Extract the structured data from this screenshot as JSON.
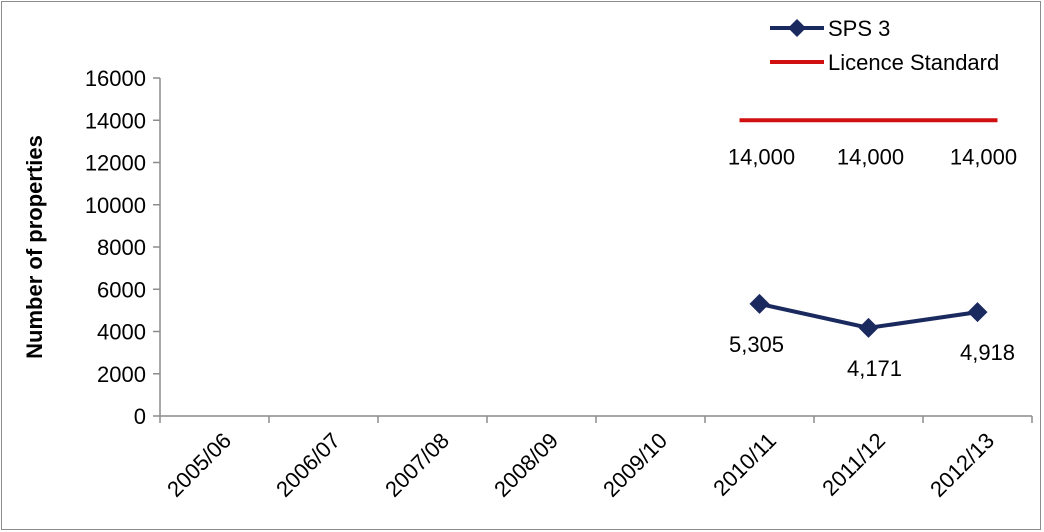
{
  "chart_data": {
    "type": "line",
    "title": "",
    "xlabel": "",
    "ylabel": "Number of properties",
    "categories": [
      "2005/06",
      "2006/07",
      "2007/08",
      "2008/09",
      "2009/10",
      "2010/11",
      "2011/12",
      "2012/13"
    ],
    "ylim": [
      0,
      16000
    ],
    "yticks": [
      0,
      2000,
      4000,
      6000,
      8000,
      10000,
      12000,
      14000,
      16000
    ],
    "grid": false,
    "legend_position": "top-right",
    "series": [
      {
        "name": "SPS 3",
        "color": "#1a2a5e",
        "marker": "diamond",
        "values": [
          null,
          null,
          null,
          null,
          null,
          5305,
          4171,
          4918
        ],
        "labels": [
          "",
          "",
          "",
          "",
          "",
          "5,305",
          "4,171",
          "4,918"
        ]
      },
      {
        "name": "Licence Standard",
        "color": "#d01010",
        "marker": "none",
        "values": [
          null,
          null,
          null,
          null,
          null,
          14000,
          14000,
          14000
        ],
        "labels": [
          "",
          "",
          "",
          "",
          "",
          "14,000",
          "14,000",
          "14,000"
        ]
      }
    ]
  }
}
